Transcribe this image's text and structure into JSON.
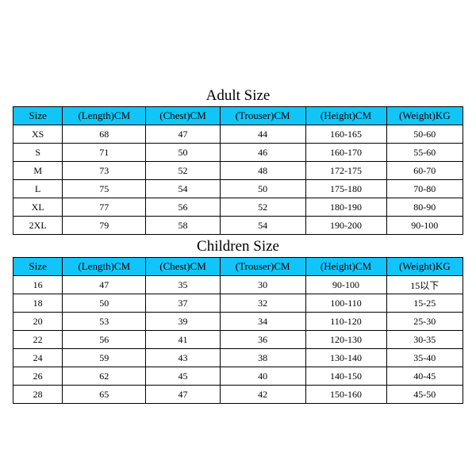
{
  "colors": {
    "header_bg": "#11c5f8",
    "border": "#000000",
    "background": "#ffffff",
    "text": "#000000"
  },
  "typography": {
    "title_fontsize": 19,
    "header_fontsize": 13,
    "cell_fontsize": 12,
    "font_family": "Times New Roman"
  },
  "adult": {
    "title": "Adult Size",
    "columns": [
      "Size",
      "(Length)CM",
      "(Chest)CM",
      "(Trouser)CM",
      "(Height)CM",
      "(Weight)KG"
    ],
    "rows": [
      [
        "XS",
        "68",
        "47",
        "44",
        "160-165",
        "50-60"
      ],
      [
        "S",
        "71",
        "50",
        "46",
        "160-170",
        "55-60"
      ],
      [
        "M",
        "73",
        "52",
        "48",
        "172-175",
        "60-70"
      ],
      [
        "L",
        "75",
        "54",
        "50",
        "175-180",
        "70-80"
      ],
      [
        "XL",
        "77",
        "56",
        "52",
        "180-190",
        "80-90"
      ],
      [
        "2XL",
        "79",
        "58",
        "54",
        "190-200",
        "90-100"
      ]
    ]
  },
  "children": {
    "title": "Children Size",
    "columns": [
      "Size",
      "(Length)CM",
      "(Chest)CM",
      "(Trouser)CM",
      "(Height)CM",
      "(Weight)KG"
    ],
    "rows": [
      [
        "16",
        "47",
        "35",
        "30",
        "90-100",
        "15以下"
      ],
      [
        "18",
        "50",
        "37",
        "32",
        "100-110",
        "15-25"
      ],
      [
        "20",
        "53",
        "39",
        "34",
        "110-120",
        "25-30"
      ],
      [
        "22",
        "56",
        "41",
        "36",
        "120-130",
        "30-35"
      ],
      [
        "24",
        "59",
        "43",
        "38",
        "130-140",
        "35-40"
      ],
      [
        "26",
        "62",
        "45",
        "40",
        "140-150",
        "40-45"
      ],
      [
        "28",
        "65",
        "47",
        "42",
        "150-160",
        "45-50"
      ]
    ]
  }
}
